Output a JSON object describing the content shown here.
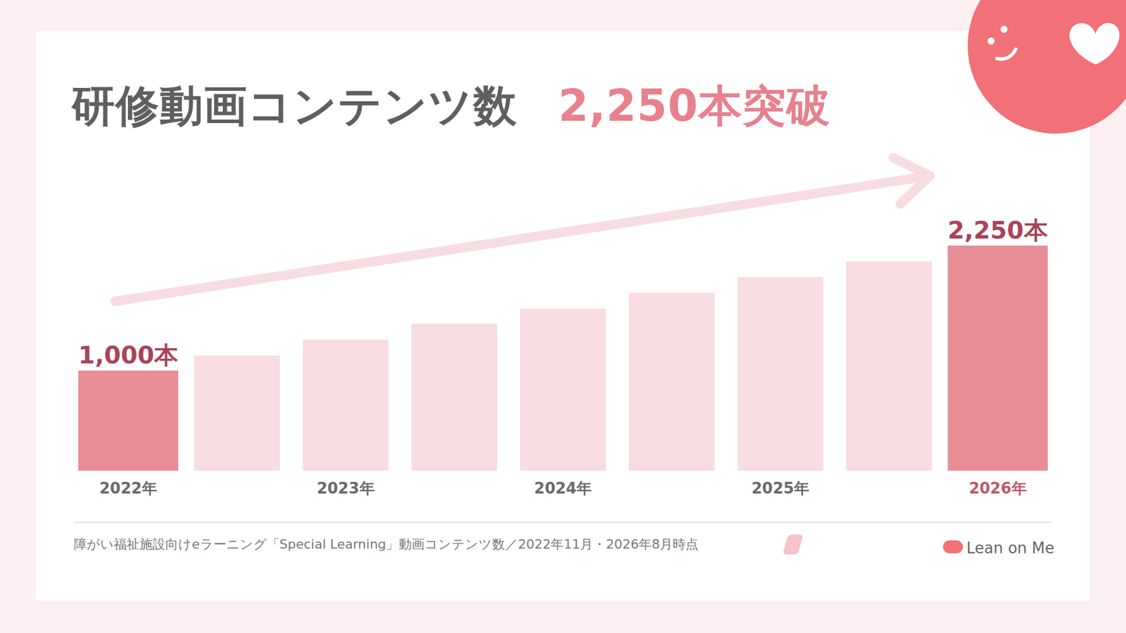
{
  "chart_data": {
    "type": "bar",
    "title": "研修動画コンテンツ数",
    "title_highlight": "2,250本突破",
    "categories": [
      "2022年",
      null,
      "2023年",
      null,
      "2024年",
      null,
      "2025年",
      null,
      "2026年"
    ],
    "values": [
      1000,
      1150,
      1310,
      1470,
      1620,
      1780,
      1935,
      2090,
      2250
    ],
    "value_labels": [
      "1,000本",
      null,
      null,
      null,
      null,
      null,
      null,
      null,
      "2,250本"
    ],
    "data_labels": true,
    "colors": [
      "#e88d96",
      "#f7dde1",
      "#f7dde1",
      "#f7dde1",
      "#f7dde1",
      "#f7dde1",
      "#f7dde1",
      "#f7dde1",
      "#e88d96"
    ],
    "tick_labels": "x",
    "grid": false,
    "source": "障がい福祉施設向けeラーニング「Special Learning」動画コンテンツ数／2022年11月・2026年8月時点",
    "brand": "Lean on Me"
  }
}
